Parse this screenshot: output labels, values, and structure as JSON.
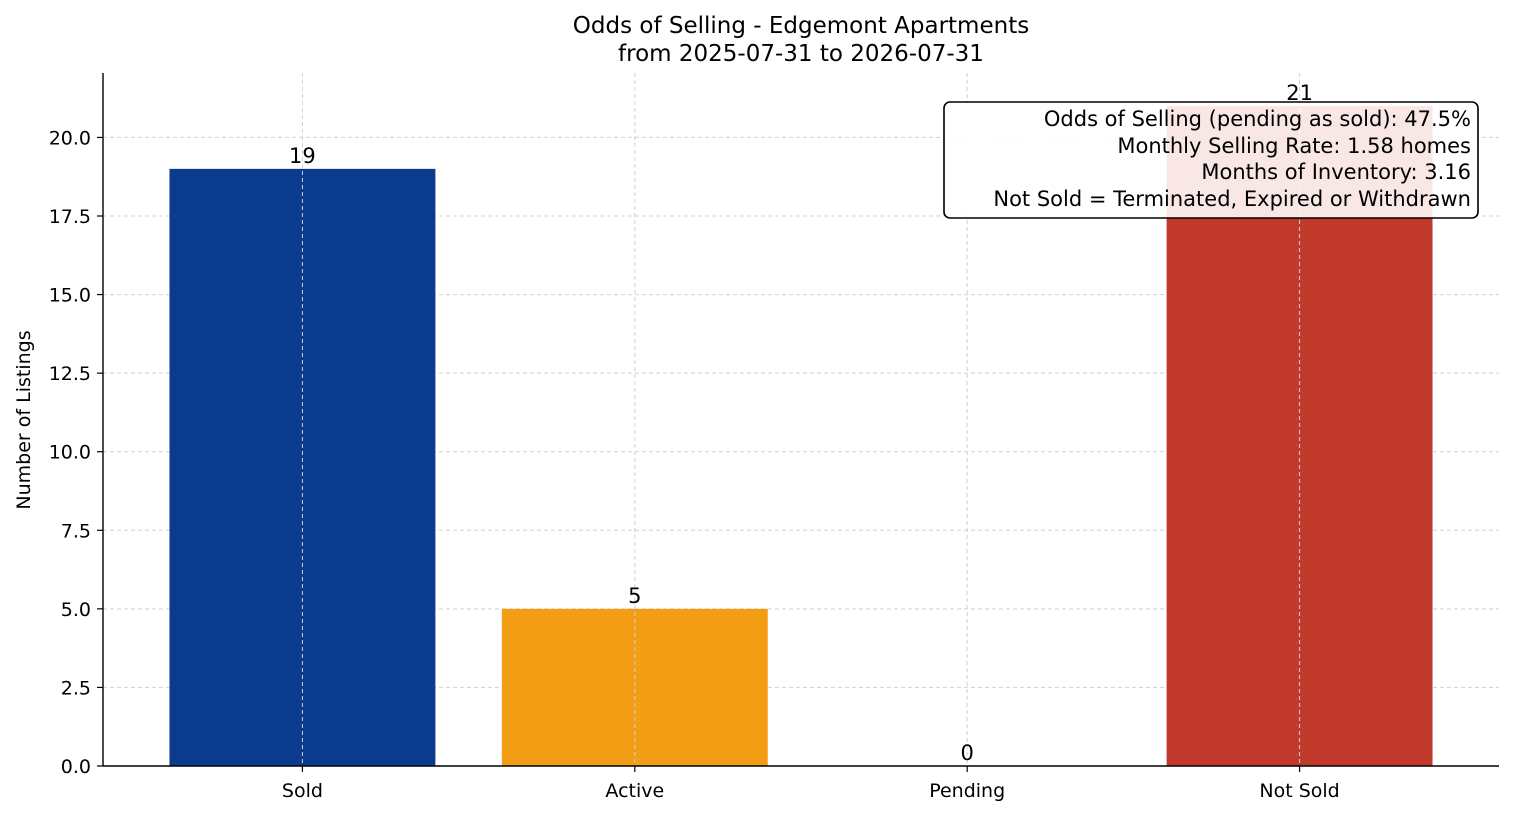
{
  "chart_data": {
    "type": "bar",
    "title": "Odds of Selling - Edgemont Apartments",
    "subtitle": "from 2025-07-31 to 2026-07-31",
    "xlabel": "",
    "ylabel": "Number of Listings",
    "categories": [
      "Sold",
      "Active",
      "Pending",
      "Not Sold"
    ],
    "values": [
      19,
      5,
      0,
      21
    ],
    "colors": [
      "#0b3b8f",
      "#f29d14",
      "#2e8b57",
      "#c0392b"
    ],
    "ylim": [
      0,
      22.05
    ],
    "yticks": [
      "0.0",
      "2.5",
      "5.0",
      "7.5",
      "10.0",
      "12.5",
      "15.0",
      "17.5",
      "20.0"
    ],
    "grid": true,
    "annotation": {
      "placement": "top-right",
      "lines": [
        "Odds of Selling (pending as sold): 47.5%",
        "Monthly Selling Rate: 1.58 homes",
        "Months of Inventory: 3.16",
        "Not Sold = Terminated, Expired or Withdrawn"
      ]
    }
  }
}
